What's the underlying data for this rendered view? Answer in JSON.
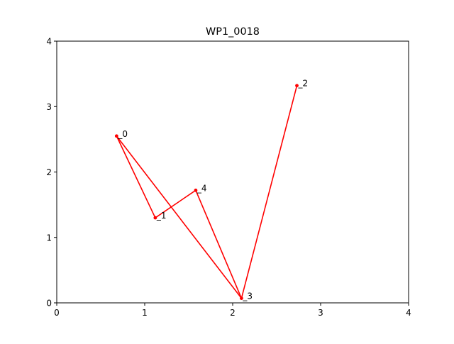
{
  "chart_data": {
    "type": "line",
    "title": "WP1_0018",
    "xlabel": "",
    "ylabel": "",
    "xlim": [
      0,
      4
    ],
    "ylim": [
      0,
      4
    ],
    "x_ticks": [
      "0",
      "1",
      "2",
      "3",
      "4"
    ],
    "y_ticks": [
      "0",
      "1",
      "2",
      "3",
      "4"
    ],
    "grid": false,
    "line_color": "#ff0000",
    "points": [
      {
        "label": "_0",
        "x": 0.68,
        "y": 2.55
      },
      {
        "label": "_1",
        "x": 1.12,
        "y": 1.3
      },
      {
        "label": "_4",
        "x": 1.58,
        "y": 1.72
      },
      {
        "label": "_3",
        "x": 2.1,
        "y": 0.07
      },
      {
        "label": "_2",
        "x": 2.73,
        "y": 3.32
      }
    ],
    "path_order": [
      "_2",
      "_3",
      "_0",
      "_1",
      "_4",
      "_3"
    ]
  }
}
